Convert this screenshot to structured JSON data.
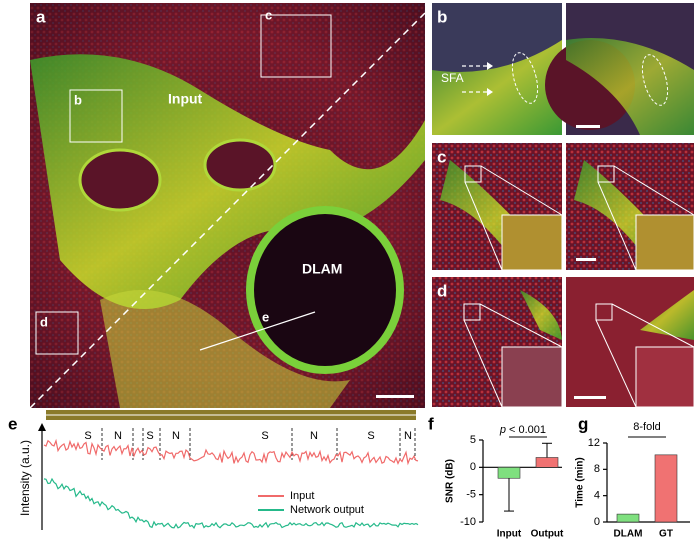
{
  "panel_labels": [
    "a",
    "b",
    "c",
    "d",
    "e",
    "f",
    "g"
  ],
  "panel_a": {
    "input": "Input",
    "dlam": "DLAM",
    "line": "e",
    "boxes": [
      "b",
      "c",
      "d"
    ]
  },
  "panel_b": {
    "arrow_label": "SFA"
  },
  "chart_data": [
    {
      "type": "line",
      "ylabel": "Intensity (a.u.)",
      "legend": [
        {
          "name": "Input",
          "color": "#f06a6a"
        },
        {
          "name": "Network output",
          "color": "#25b98a"
        }
      ],
      "region_labels": [
        "S",
        "N",
        "S",
        "N",
        "S",
        "N",
        "S",
        "N"
      ]
    },
    {
      "type": "bar",
      "ylabel": "SNR (dB)",
      "categories": [
        "Input",
        "Output"
      ],
      "values": [
        -2,
        1.8
      ],
      "errors": [
        6,
        2.6
      ],
      "colors": [
        "#7fe07f",
        "#f07272"
      ],
      "ylim": [
        -10,
        5
      ],
      "yticks": [
        -10,
        -5,
        0,
        5
      ],
      "annotation": {
        "italic": "p",
        "text": "< 0.001"
      }
    },
    {
      "type": "bar",
      "ylabel": "Time (min)",
      "categories": [
        "DLAM",
        "GT"
      ],
      "values": [
        1.2,
        10.2
      ],
      "colors": [
        "#7fe07f",
        "#f07272"
      ],
      "ylim": [
        0,
        12
      ],
      "yticks": [
        0,
        4,
        8,
        12
      ],
      "annotation": "8-fold"
    }
  ]
}
